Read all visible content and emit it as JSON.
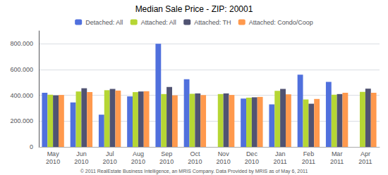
{
  "chart_data": {
    "type": "bar",
    "title": "Median Sale Price - ZIP: 20001",
    "annotations": [
      "© 2011 RealEstate Business Intelligence, an MRIS Company. Data Provided by MRIS as of May 6, 2011"
    ],
    "categories": [
      "May\n2010",
      "Jun\n2010",
      "Jul\n2010",
      "Aug\n2010",
      "Sep\n2010",
      "Oct\n2010",
      "Nov\n2010",
      "Dec\n2010",
      "Jan\n2011",
      "Feb\n2011",
      "Mar\n2011",
      "Apr\n2011"
    ],
    "series": [
      {
        "name": "Detached: All",
        "values": [
          420000,
          345000,
          250000,
          392000,
          800000,
          525000,
          0,
          375000,
          330000,
          560000,
          505000,
          0
        ]
      },
      {
        "name": "Attached: All",
        "values": [
          405000,
          430000,
          440000,
          425000,
          410000,
          412000,
          410000,
          382000,
          435000,
          368000,
          405000,
          427000
        ]
      },
      {
        "name": "Attached: TH",
        "values": [
          400000,
          455000,
          450000,
          430000,
          465000,
          415000,
          415000,
          385000,
          450000,
          335000,
          410000,
          452000
        ]
      },
      {
        "name": "Attached: Condo/Coop",
        "values": [
          403000,
          425000,
          437000,
          432000,
          400000,
          402000,
          403000,
          388000,
          408000,
          372000,
          420000,
          420000
        ]
      }
    ],
    "ylim": [
      0,
      900000
    ],
    "yticks": [
      0,
      {
        "value": 200000,
        "label": "200.000"
      },
      {
        "value": 400000,
        "label": "400.000"
      },
      {
        "value": 600000,
        "label": "600.000"
      },
      {
        "value": 800000,
        "label": "800.000"
      }
    ],
    "grid": true,
    "legend": "top"
  }
}
